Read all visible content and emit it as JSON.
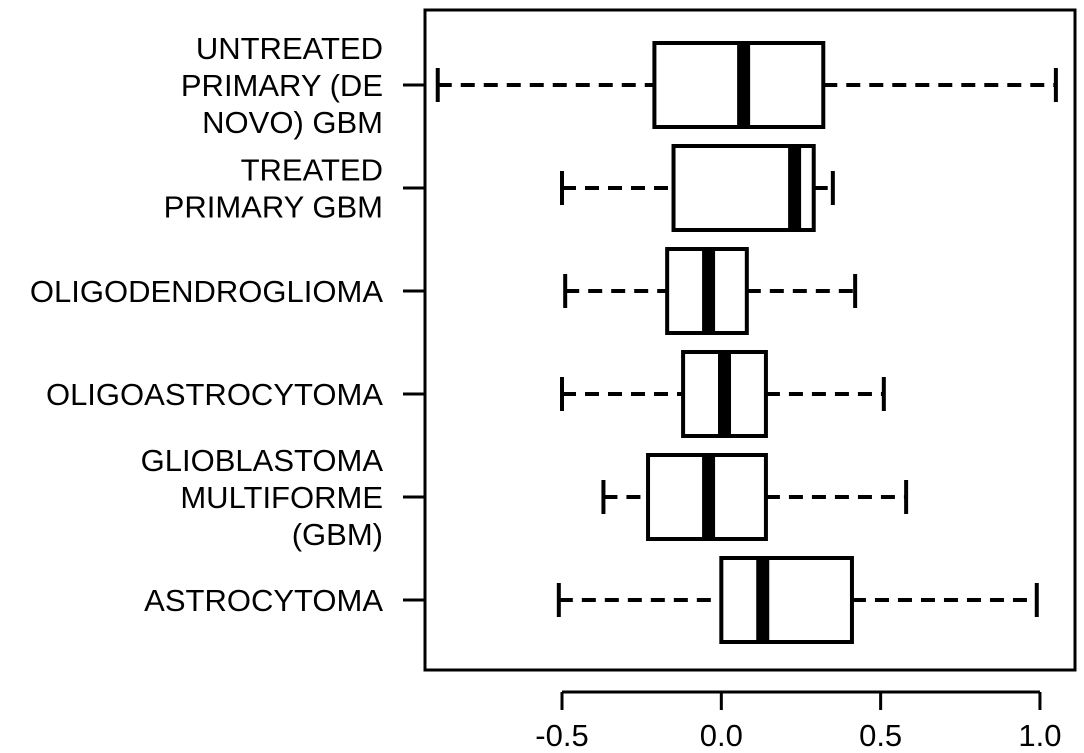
{
  "chart_data": {
    "type": "boxplot",
    "orientation": "horizontal",
    "title": "",
    "xlabel": "",
    "ylabel": "",
    "xlim": [
      -0.93,
      1.11
    ],
    "x_ticks": [
      -0.5,
      0.0,
      0.5,
      1.0
    ],
    "x_tick_labels": [
      "-0.5",
      "0.0",
      "0.5",
      "1.0"
    ],
    "grid": false,
    "colors": {
      "line": "#000000",
      "box_fill": "#ffffff",
      "background": "#ffffff"
    },
    "categories": [
      {
        "label_lines": [
          "UNTREATED",
          "PRIMARY (DE",
          "NOVO) GBM"
        ],
        "whisker_low": -0.89,
        "q1": -0.21,
        "median": 0.07,
        "q3": 0.32,
        "whisker_high": 1.05
      },
      {
        "label_lines": [
          "TREATED",
          "PRIMARY GBM"
        ],
        "whisker_low": -0.5,
        "q1": -0.15,
        "median": 0.23,
        "q3": 0.29,
        "whisker_high": 0.35
      },
      {
        "label_lines": [
          "OLIGODENDROGLIOMA"
        ],
        "whisker_low": -0.49,
        "q1": -0.17,
        "median": -0.04,
        "q3": 0.08,
        "whisker_high": 0.42
      },
      {
        "label_lines": [
          "OLIGOASTROCYTOMA"
        ],
        "whisker_low": -0.5,
        "q1": -0.12,
        "median": 0.01,
        "q3": 0.14,
        "whisker_high": 0.51
      },
      {
        "label_lines": [
          "GLIOBLASTOMA",
          "MULTIFORME",
          "(GBM)"
        ],
        "whisker_low": -0.37,
        "q1": -0.23,
        "median": -0.04,
        "q3": 0.14,
        "whisker_high": 0.58
      },
      {
        "label_lines": [
          "ASTROCYTOMA"
        ],
        "whisker_low": -0.51,
        "q1": 0.0,
        "median": 0.13,
        "q3": 0.41,
        "whisker_high": 0.99
      }
    ]
  }
}
